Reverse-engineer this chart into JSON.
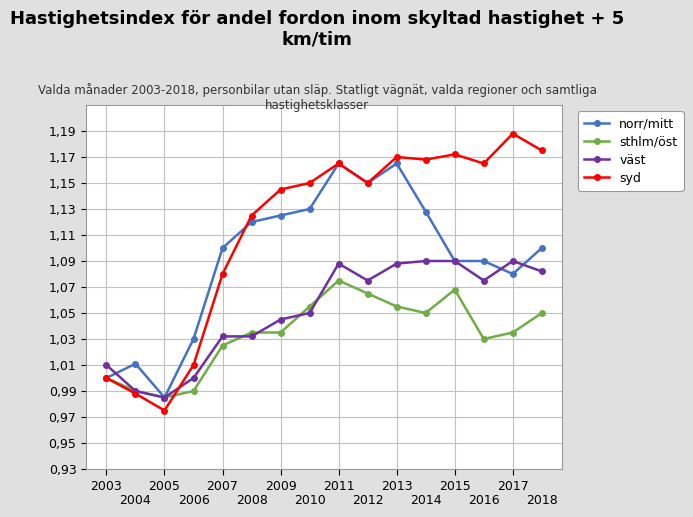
{
  "title": "Hastighetsindex för andel fordon inom skyltad hastighet + 5\nkm/tim",
  "subtitle": "Valda månader 2003-2018, personbilar utan släp. Statligt vägnät, valda regioner och samtliga\nhastighetsklasser",
  "years": [
    2003,
    2004,
    2005,
    2006,
    2007,
    2008,
    2009,
    2010,
    2011,
    2012,
    2013,
    2014,
    2015,
    2016,
    2017,
    2018
  ],
  "norr_mitt": [
    1.0,
    1.011,
    0.985,
    1.03,
    1.1,
    1.12,
    1.125,
    1.13,
    1.165,
    1.15,
    1.165,
    1.128,
    1.09,
    1.09,
    1.08,
    1.1
  ],
  "sthlm_ost": [
    1.0,
    0.99,
    0.985,
    0.99,
    1.025,
    1.035,
    1.035,
    1.055,
    1.075,
    1.065,
    1.055,
    1.05,
    1.068,
    1.03,
    1.035,
    1.05
  ],
  "vast": [
    1.01,
    0.99,
    0.985,
    1.0,
    1.032,
    1.032,
    1.045,
    1.05,
    1.088,
    1.075,
    1.088,
    1.09,
    1.09,
    1.075,
    1.09,
    1.082
  ],
  "syd": [
    1.0,
    0.988,
    0.975,
    1.01,
    1.08,
    1.125,
    1.145,
    1.15,
    1.165,
    1.15,
    1.17,
    1.168,
    1.172,
    1.165,
    1.188,
    1.175
  ],
  "colors": {
    "norr_mitt": "#4472C4",
    "sthlm_ost": "#70AD47",
    "vast": "#7030A0",
    "syd": "#FF0000"
  },
  "legend_labels": [
    "norr/mitt",
    "sthlm/öst",
    "väst",
    "syd"
  ],
  "ylim": [
    0.93,
    1.21
  ],
  "yticks": [
    0.93,
    0.95,
    0.97,
    0.99,
    1.01,
    1.03,
    1.05,
    1.07,
    1.09,
    1.11,
    1.13,
    1.15,
    1.17,
    1.19
  ],
  "background_color": "#E0E0E0",
  "plot_background": "#FFFFFF",
  "grid_color": "#C0C0C0"
}
